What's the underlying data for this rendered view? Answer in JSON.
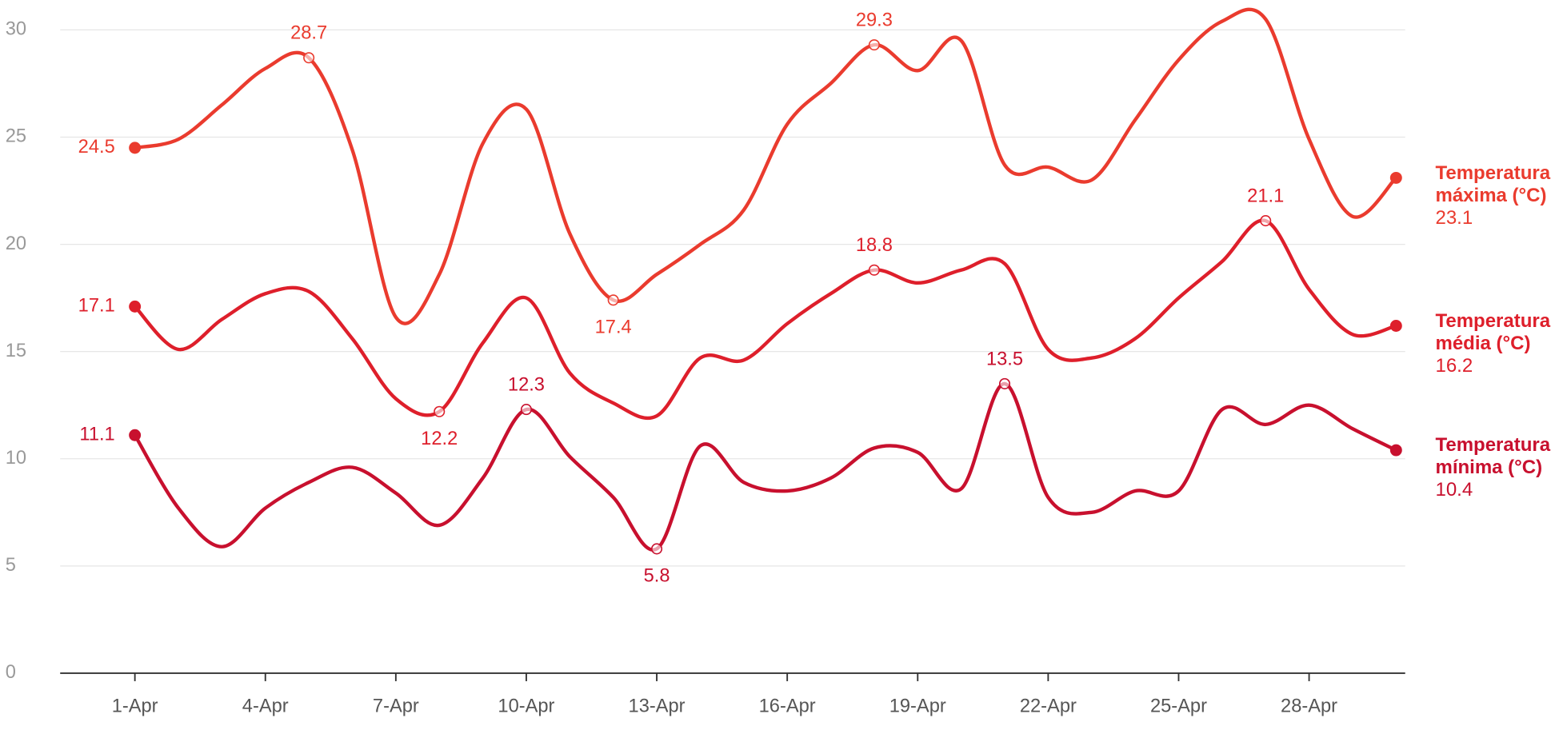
{
  "chart_data": {
    "type": "line",
    "categories": [
      "1-Apr",
      null,
      null,
      "4-Apr",
      null,
      null,
      "7-Apr",
      null,
      null,
      "10-Apr",
      null,
      null,
      "13-Apr",
      null,
      null,
      "16-Apr",
      null,
      null,
      "19-Apr",
      null,
      null,
      "22-Apr",
      null,
      null,
      "25-Apr",
      null,
      null,
      "28-Apr",
      null,
      null
    ],
    "ylim": [
      0,
      30
    ],
    "yticks": [
      0,
      5,
      10,
      15,
      20,
      25,
      30
    ],
    "grid": true,
    "series": [
      {
        "name": "Temperatura máxima (°C)",
        "color": "#ea3b2e",
        "values": [
          24.5,
          24.9,
          26.5,
          28.2,
          28.7,
          24.4,
          16.6,
          18.6,
          24.7,
          26.3,
          20.5,
          17.4,
          18.6,
          20.0,
          21.6,
          25.6,
          27.5,
          29.3,
          28.1,
          29.5,
          23.7,
          23.6,
          23.0,
          25.8,
          28.6,
          30.4,
          30.5,
          24.9,
          21.3,
          23.1
        ],
        "value_labels": [
          "24.5",
          null,
          null,
          null,
          "28.7",
          null,
          null,
          null,
          null,
          null,
          null,
          "17.4",
          null,
          null,
          null,
          null,
          null,
          "29.3",
          null,
          null,
          null,
          null,
          null,
          null,
          null,
          null,
          null,
          null,
          null,
          null
        ]
      },
      {
        "name": "Temperatura média (°C)",
        "color": "#de1f2b",
        "values": [
          17.1,
          15.1,
          16.5,
          17.7,
          17.8,
          15.6,
          12.8,
          12.2,
          15.4,
          17.5,
          14.0,
          12.6,
          12.0,
          14.7,
          14.6,
          16.3,
          17.7,
          18.8,
          18.2,
          18.8,
          19.1,
          15.1,
          14.7,
          15.6,
          17.5,
          19.2,
          21.1,
          17.9,
          15.8,
          16.2
        ],
        "value_labels": [
          "17.1",
          null,
          null,
          null,
          null,
          null,
          null,
          "12.2",
          null,
          null,
          null,
          null,
          null,
          null,
          null,
          null,
          null,
          "18.8",
          null,
          null,
          null,
          null,
          null,
          null,
          null,
          null,
          "21.1",
          null,
          null,
          null
        ]
      },
      {
        "name": "Temperatura mínima (°C)",
        "color": "#c8102e",
        "values": [
          11.1,
          7.7,
          5.9,
          7.7,
          8.9,
          9.6,
          8.4,
          6.9,
          9.1,
          12.3,
          10.1,
          8.2,
          5.8,
          10.6,
          8.9,
          8.5,
          9.1,
          10.5,
          10.3,
          8.6,
          13.5,
          8.2,
          7.5,
          8.5,
          8.5,
          12.3,
          11.6,
          12.5,
          11.4,
          10.4
        ],
        "value_labels": [
          "11.1",
          null,
          null,
          null,
          null,
          null,
          null,
          null,
          null,
          "12.3",
          null,
          null,
          "5.8",
          null,
          null,
          null,
          null,
          null,
          null,
          null,
          "13.5",
          null,
          null,
          null,
          null,
          null,
          null,
          null,
          null,
          null
        ]
      }
    ]
  }
}
